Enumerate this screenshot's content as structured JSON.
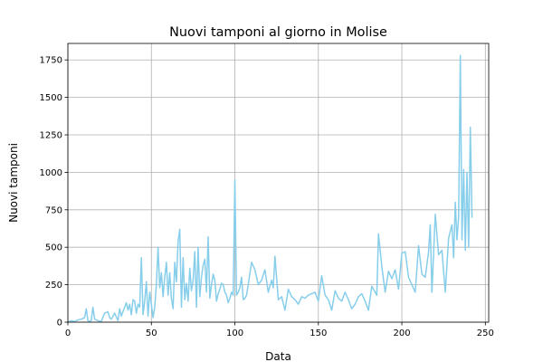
{
  "chart_data": {
    "type": "line",
    "title": "Nuovi tamponi al giorno in Molise",
    "xlabel": "Data",
    "ylabel": "Nuovi tamponi",
    "xlim": [
      0,
      252
    ],
    "ylim": [
      0,
      1860
    ],
    "xticks": [
      0,
      50,
      100,
      150,
      200,
      250
    ],
    "yticks": [
      0,
      250,
      500,
      750,
      1000,
      1250,
      1500,
      1750
    ],
    "grid": true,
    "series": [
      {
        "color": "#87ceeb",
        "x": [
          0,
          2,
          4,
          6,
          8,
          10,
          11,
          12,
          13,
          14,
          15,
          16,
          18,
          20,
          22,
          24,
          25,
          26,
          28,
          30,
          31,
          32,
          33,
          34,
          35,
          36,
          37,
          38,
          39,
          40,
          41,
          42,
          43,
          44,
          45,
          46,
          47,
          48,
          49,
          50,
          51,
          52,
          53,
          54,
          55,
          56,
          57,
          58,
          59,
          60,
          61,
          62,
          63,
          64,
          65,
          66,
          67,
          68,
          69,
          70,
          71,
          72,
          73,
          74,
          75,
          76,
          77,
          78,
          79,
          80,
          81,
          82,
          83,
          84,
          85,
          86,
          87,
          88,
          89,
          90,
          91,
          92,
          93,
          94,
          95,
          96,
          97,
          98,
          99,
          100,
          101,
          102,
          103,
          104,
          105,
          106,
          107,
          108,
          110,
          112,
          114,
          116,
          118,
          120,
          122,
          123,
          124,
          126,
          128,
          130,
          132,
          134,
          136,
          138,
          140,
          142,
          144,
          146,
          148,
          150,
          152,
          154,
          156,
          158,
          160,
          162,
          164,
          166,
          168,
          170,
          172,
          174,
          176,
          178,
          180,
          182,
          184,
          185,
          186,
          188,
          190,
          192,
          194,
          196,
          198,
          200,
          202,
          204,
          206,
          208,
          210,
          212,
          214,
          216,
          217,
          218,
          219,
          220,
          222,
          224,
          226,
          228,
          230,
          231,
          232,
          233,
          234,
          235,
          236,
          237,
          238,
          239,
          240,
          241,
          242
        ],
        "y": [
          0,
          10,
          5,
          15,
          20,
          30,
          90,
          10,
          5,
          10,
          100,
          20,
          10,
          5,
          60,
          70,
          30,
          20,
          60,
          10,
          90,
          40,
          70,
          100,
          130,
          80,
          120,
          50,
          150,
          140,
          60,
          120,
          100,
          430,
          50,
          140,
          270,
          40,
          200,
          120,
          30,
          100,
          250,
          500,
          230,
          330,
          170,
          300,
          400,
          180,
          330,
          160,
          90,
          400,
          270,
          540,
          620,
          100,
          430,
          150,
          260,
          140,
          360,
          210,
          280,
          470,
          100,
          500,
          170,
          300,
          380,
          420,
          200,
          570,
          160,
          250,
          320,
          280,
          140,
          190,
          220,
          260,
          250,
          200,
          180,
          130,
          160,
          200,
          180,
          950,
          180,
          200,
          230,
          300,
          150,
          160,
          180,
          250,
          400,
          350,
          250,
          280,
          350,
          200,
          280,
          230,
          440,
          150,
          170,
          80,
          220,
          170,
          150,
          120,
          170,
          160,
          180,
          190,
          200,
          140,
          310,
          180,
          150,
          80,
          210,
          160,
          140,
          200,
          150,
          90,
          120,
          170,
          190,
          140,
          80,
          240,
          200,
          180,
          590,
          370,
          200,
          340,
          290,
          350,
          220,
          460,
          470,
          300,
          250,
          200,
          510,
          320,
          300,
          470,
          650,
          200,
          460,
          720,
          450,
          480,
          200,
          560,
          650,
          430,
          800,
          550,
          700,
          1780,
          550,
          1020,
          480,
          1000,
          500,
          1300,
          700
        ]
      }
    ]
  }
}
